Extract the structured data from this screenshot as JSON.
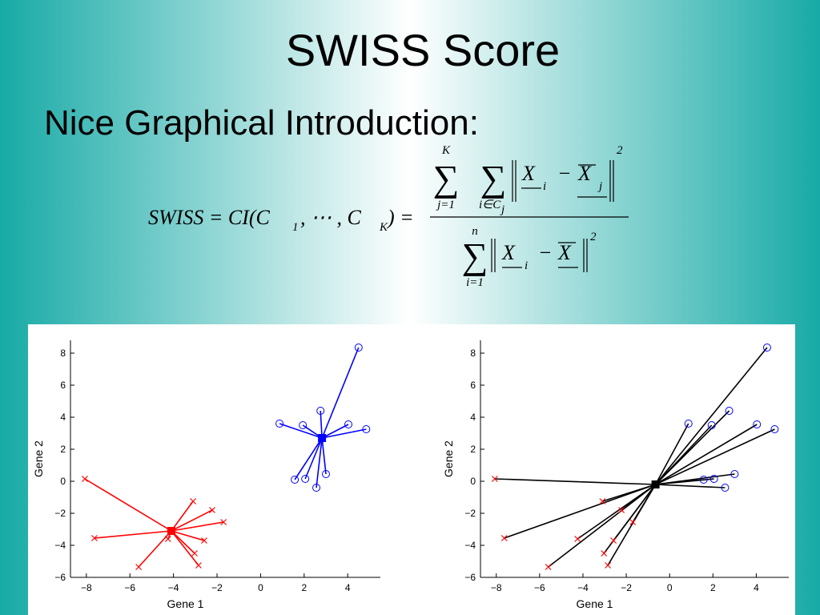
{
  "title": "SWISS Score",
  "subtitle": "Nice Graphical Introduction:",
  "formula": {
    "tokens": [
      "SWISS = CI(C",
      "1",
      ", ⋯ , C",
      "K",
      ") =",
      "K",
      "∑",
      "j=1",
      "∑",
      "i∈C",
      "j",
      "X",
      "i",
      "−",
      "X",
      "j",
      "2",
      "n",
      "∑",
      "i=1",
      "X",
      "i",
      "−",
      "X",
      "2"
    ]
  },
  "chart_data": [
    {
      "type": "scatter",
      "xlabel": "Gene 1",
      "ylabel": "Gene 2",
      "xlim": [
        -8.73,
        5.5
      ],
      "ylim": [
        -6,
        8.8
      ],
      "xticks": [
        {
          "value": -8,
          "label": "−8"
        },
        {
          "value": -6,
          "label": "−6"
        },
        {
          "value": -4,
          "label": "−4"
        },
        {
          "value": -2,
          "label": "−2"
        },
        0,
        2,
        4
      ],
      "yticks": [
        {
          "value": -6,
          "label": "−6"
        },
        {
          "value": -4,
          "label": "−4"
        },
        {
          "value": -2,
          "label": "−2"
        },
        0,
        2,
        4,
        6,
        8
      ],
      "series": [
        {
          "color": "#0000ff",
          "marker": "o",
          "center": [
            2.82,
            2.7
          ],
          "x": [
            4.5,
            0.87,
            1.94,
            2.75,
            4.03,
            4.85,
            1.57,
            2.05,
            2.56,
            3.0
          ],
          "values": [
            8.35,
            3.6,
            3.5,
            4.4,
            3.55,
            3.25,
            0.1,
            0.15,
            -0.4,
            0.45
          ]
        },
        {
          "color": "#ff0000",
          "marker": "x",
          "center": [
            -4.1,
            -3.1
          ],
          "x": [
            -8.07,
            -7.63,
            -5.6,
            -3.1,
            -2.22,
            -1.7,
            -2.59,
            -3.03,
            -2.85,
            -4.25
          ],
          "values": [
            0.15,
            -3.55,
            -5.35,
            -1.25,
            -1.8,
            -2.55,
            -3.7,
            -4.5,
            -5.25,
            -3.6
          ]
        }
      ]
    },
    {
      "type": "scatter",
      "xlabel": "Gene 1",
      "ylabel": "Gene 2",
      "xlim": [
        -8.73,
        5.5
      ],
      "ylim": [
        -6,
        8.8
      ],
      "xticks": [
        {
          "value": -8,
          "label": "−8"
        },
        {
          "value": -6,
          "label": "−6"
        },
        {
          "value": -4,
          "label": "−4"
        },
        {
          "value": -2,
          "label": "−2"
        },
        0,
        2,
        4
      ],
      "yticks": [
        {
          "value": -6,
          "label": "−6"
        },
        {
          "value": -4,
          "label": "−4"
        },
        {
          "value": -2,
          "label": "−2"
        },
        0,
        2,
        4,
        6,
        8
      ],
      "center": [
        -0.65,
        -0.2
      ],
      "line_color": "#000000",
      "series": [
        {
          "color": "#0000ff",
          "marker": "o",
          "x": [
            4.5,
            0.87,
            1.94,
            2.75,
            4.03,
            4.85,
            1.57,
            2.05,
            2.56,
            3.0
          ],
          "values": [
            8.35,
            3.6,
            3.5,
            4.4,
            3.55,
            3.25,
            0.1,
            0.15,
            -0.4,
            0.45
          ]
        },
        {
          "color": "#ff0000",
          "marker": "x",
          "x": [
            -8.07,
            -7.63,
            -5.6,
            -3.1,
            -2.22,
            -1.7,
            -2.59,
            -3.03,
            -2.85,
            -4.25
          ],
          "values": [
            0.15,
            -3.55,
            -5.35,
            -1.25,
            -1.8,
            -2.55,
            -3.7,
            -4.5,
            -5.25,
            -3.6
          ]
        }
      ]
    }
  ]
}
